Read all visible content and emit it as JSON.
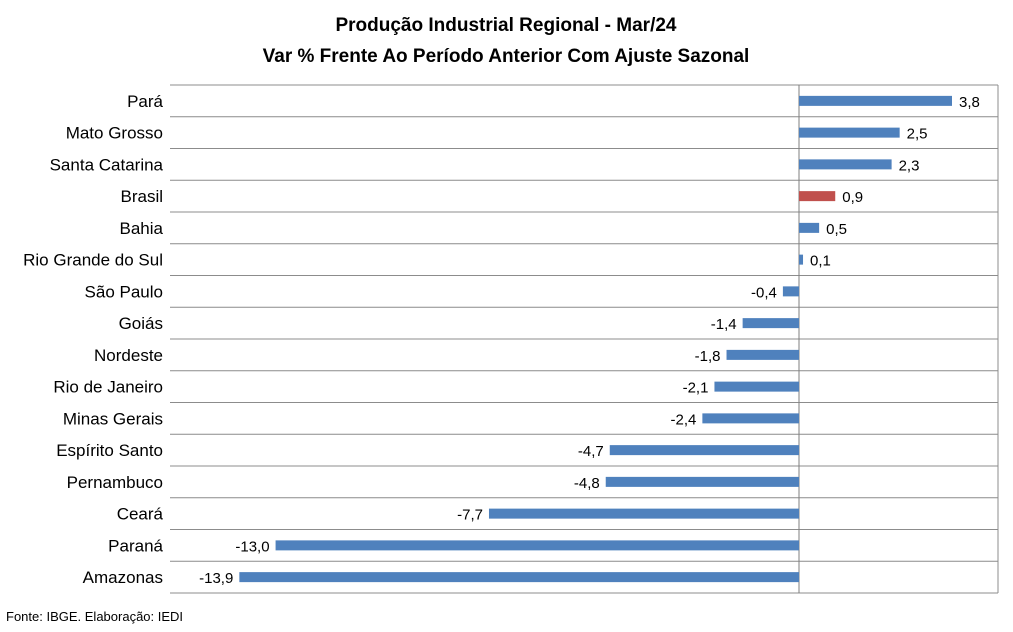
{
  "chart_data": {
    "type": "bar",
    "orientation": "horizontal",
    "title": "Produção Industrial Regional - Mar/24",
    "subtitle": "Var % Frente Ao Período Anterior Com Ajuste Sazonal",
    "categories": [
      "Pará",
      "Mato Grosso",
      "Santa Catarina",
      "Brasil",
      "Bahia",
      "Rio Grande do Sul",
      "São Paulo",
      "Goiás",
      "Nordeste",
      "Rio de Janeiro",
      "Minas Gerais",
      "Espírito Santo",
      "Pernambuco",
      "Ceará",
      "Paraná",
      "Amazonas"
    ],
    "values": [
      3.8,
      2.5,
      2.3,
      0.9,
      0.5,
      0.1,
      -0.4,
      -1.4,
      -1.8,
      -2.1,
      -2.4,
      -4.7,
      -4.8,
      -7.7,
      -13.0,
      -13.9
    ],
    "value_labels": [
      "3,8",
      "2,5",
      "2,3",
      "0,9",
      "0,5",
      "0,1",
      "-0,4",
      "-1,4",
      "-1,8",
      "-2,1",
      "-2,4",
      "-4,7",
      "-4,8",
      "-7,7",
      "-13,0",
      "-13,9"
    ],
    "xlim": [
      -15.0,
      5.0
    ],
    "grid": true,
    "bar_color": "#4f81bd",
    "highlight": {
      "category": "Brasil",
      "color": "#c0504d"
    }
  },
  "source_note": "Fonte: IBGE. Elaboração: IEDI"
}
